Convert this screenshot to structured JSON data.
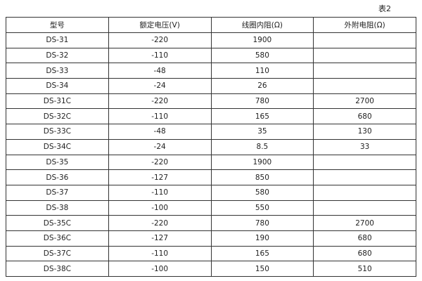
{
  "caption": "表2",
  "table": {
    "headers": [
      "型号",
      "额定电压(V)",
      "线圈内阻(Ω)",
      "外附电阻(Ω)"
    ],
    "rows": [
      [
        "DS-31",
        "-220",
        "1900",
        ""
      ],
      [
        "DS-32",
        "-110",
        "580",
        ""
      ],
      [
        "DS-33",
        "-48",
        "110",
        ""
      ],
      [
        "DS-34",
        "-24",
        "26",
        ""
      ],
      [
        "DS-31C",
        "-220",
        "780",
        "2700"
      ],
      [
        "DS-32C",
        "-110",
        "165",
        "680"
      ],
      [
        "DS-33C",
        "-48",
        "35",
        "130"
      ],
      [
        "DS-34C",
        "-24",
        "8.5",
        "33"
      ],
      [
        "DS-35",
        "-220",
        "1900",
        ""
      ],
      [
        "DS-36",
        "-127",
        "850",
        ""
      ],
      [
        "DS-37",
        "-110",
        "580",
        ""
      ],
      [
        "DS-38",
        "-100",
        "550",
        ""
      ],
      [
        "DS-35C",
        "-220",
        "780",
        "2700"
      ],
      [
        "DS-36C",
        "-127",
        "190",
        "680"
      ],
      [
        "DS-37C",
        "-110",
        "165",
        "680"
      ],
      [
        "DS-38C",
        "-100",
        "150",
        "510"
      ]
    ]
  }
}
